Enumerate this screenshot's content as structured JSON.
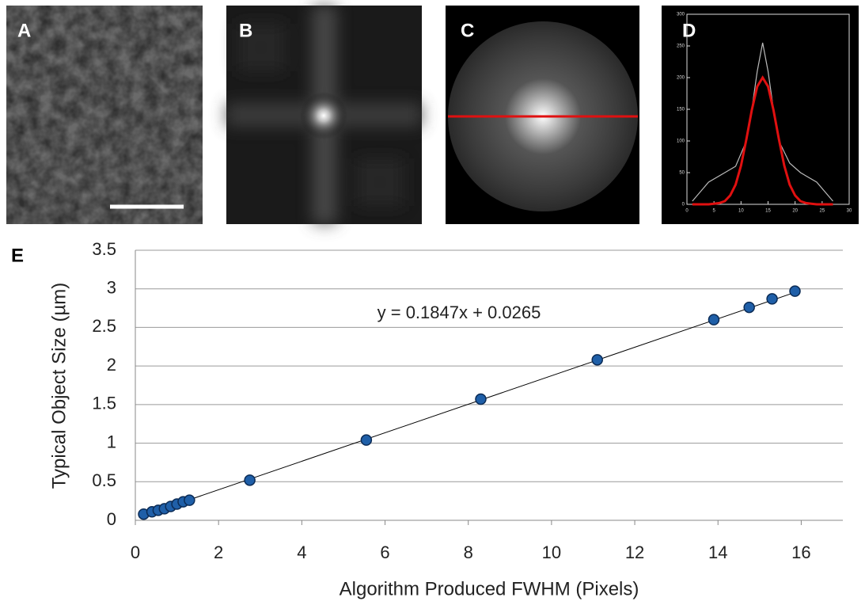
{
  "panels": [
    "A",
    "B",
    "C",
    "D",
    "E"
  ],
  "chart_data": [
    {
      "type": "scatter",
      "x_label": "Algorithm Produced FWHM (Pixels)",
      "y_label": "Typical Object Size (µm)",
      "annotation": "y = 0.1847x + 0.0265",
      "trendline": {
        "slope": 0.1847,
        "intercept": 0.0265
      },
      "x": [
        0.2,
        0.4,
        0.55,
        0.7,
        0.85,
        1.0,
        1.15,
        1.3,
        2.75,
        5.55,
        8.3,
        11.1,
        13.9,
        14.75,
        15.3,
        15.85
      ],
      "values": [
        0.08,
        0.11,
        0.13,
        0.15,
        0.18,
        0.21,
        0.24,
        0.26,
        0.52,
        1.04,
        1.57,
        2.08,
        2.6,
        2.76,
        2.87,
        2.97
      ],
      "color": "#1f5fa8",
      "xlim": [
        0,
        17
      ],
      "xticks": [
        0,
        2,
        4,
        6,
        8,
        10,
        12,
        14,
        16
      ],
      "ylim": [
        0,
        3.5
      ],
      "yticks": [
        0,
        0.5,
        1,
        1.5,
        2,
        2.5,
        3,
        3.5
      ],
      "grid": true
    },
    {
      "type": "line",
      "series": [
        {
          "color": "#bbbbbb",
          "x": [
            1,
            4,
            7,
            9,
            11,
            12,
            13,
            14,
            15,
            16,
            17,
            19,
            21,
            24,
            27
          ],
          "values": [
            5,
            35,
            50,
            60,
            100,
            150,
            210,
            255,
            210,
            150,
            100,
            65,
            50,
            35,
            5
          ]
        },
        {
          "color": "#e01010",
          "x": [
            1,
            2,
            3,
            4,
            5,
            6,
            7,
            8,
            9,
            10,
            11,
            12,
            13,
            14,
            15,
            16,
            17,
            18,
            19,
            20,
            21,
            22,
            23,
            24,
            25,
            26,
            27
          ],
          "values": [
            0,
            0,
            0,
            0,
            1,
            2,
            5,
            14,
            31,
            61,
            103,
            149,
            186,
            200,
            186,
            149,
            103,
            61,
            31,
            14,
            5,
            2,
            1,
            0,
            0,
            0,
            0
          ]
        }
      ],
      "xlim": [
        0,
        30
      ],
      "xticks": [
        0,
        5,
        10,
        15,
        20,
        25,
        30
      ],
      "ylim": [
        0,
        300
      ],
      "yticks": [
        0,
        50,
        100,
        150,
        200,
        250,
        300
      ]
    }
  ]
}
